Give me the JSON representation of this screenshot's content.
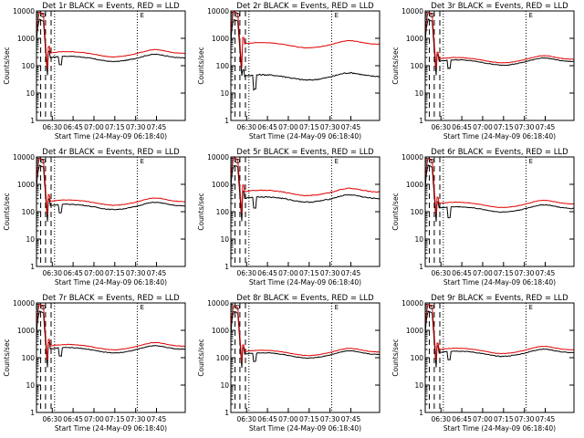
{
  "page": {
    "background": "#ffffff"
  },
  "colors": {
    "events": "#000000",
    "lld": "#e00000",
    "axis": "#000000"
  },
  "chart_data": [
    {
      "type": "line",
      "title": "Det 1r BLACK = Events, RED = LLD",
      "xlabel": "Start Time (24-May-09 06:18:40)",
      "ylabel": "Counts/sec",
      "yscale": "log",
      "ylim": [
        1,
        10000
      ],
      "x_ticks": [
        "06:30",
        "06:45",
        "07:00",
        "07:15",
        "07:30",
        "07:45"
      ],
      "y_ticks": [
        "1",
        "10",
        "100",
        "1000",
        "10000"
      ],
      "xlim_minutes": [
        0,
        107
      ],
      "series": [
        {
          "name": "Events",
          "color": "#000000",
          "baseline": 190,
          "peak": 5000,
          "dip_depth": 0.5,
          "step": 1.0,
          "noise": 0.03
        },
        {
          "name": "LLD",
          "color": "#e00000",
          "baseline": 280,
          "peak": 9000,
          "dip_depth": 0.0,
          "step": 1.0,
          "noise": 0.02
        }
      ],
      "vlines_minutes": {
        "dashed": [
          3,
          6.5,
          10.5
        ],
        "dotted": [
          13,
          72.5
        ]
      },
      "markers": [
        "D",
        "E"
      ]
    },
    {
      "type": "line",
      "title": "Det 2r BLACK = Events, RED = LLD",
      "xlabel": "Start Time (24-May-09 06:18:40)",
      "ylabel": "Counts/sec",
      "yscale": "log",
      "ylim": [
        1,
        10000
      ],
      "x_ticks": [
        "06:30",
        "06:45",
        "07:00",
        "07:15",
        "07:30",
        "07:45"
      ],
      "y_ticks": [
        "1",
        "10",
        "100",
        "1000",
        "10000"
      ],
      "xlim_minutes": [
        0,
        107
      ],
      "series": [
        {
          "name": "Events",
          "color": "#000000",
          "baseline": 40,
          "peak": 5000,
          "dip_depth": 0.7,
          "step": 1.0,
          "noise": 0.05
        },
        {
          "name": "LLD",
          "color": "#e00000",
          "baseline": 600,
          "peak": 9500,
          "dip_depth": 0.0,
          "step": 0.35,
          "noise": 0.02
        }
      ],
      "vlines_minutes": {
        "dashed": [
          3,
          6.5,
          10.5
        ],
        "dotted": [
          13,
          72.5
        ]
      },
      "markers": [
        "D",
        "E"
      ]
    },
    {
      "type": "line",
      "title": "Det 3r BLACK = Events, RED = LLD",
      "xlabel": "Start Time (24-May-09 06:18:40)",
      "ylabel": "Counts/sec",
      "yscale": "log",
      "ylim": [
        1,
        10000
      ],
      "x_ticks": [
        "06:30",
        "06:45",
        "07:00",
        "07:15",
        "07:30",
        "07:45"
      ],
      "y_ticks": [
        "1",
        "10",
        "100",
        "1000",
        "10000"
      ],
      "xlim_minutes": [
        0,
        107
      ],
      "series": [
        {
          "name": "Events",
          "color": "#000000",
          "baseline": 140,
          "peak": 5000,
          "dip_depth": 0.5,
          "step": 1.0,
          "noise": 0.03
        },
        {
          "name": "LLD",
          "color": "#e00000",
          "baseline": 170,
          "peak": 9000,
          "dip_depth": 0.0,
          "step": 1.0,
          "noise": 0.02
        }
      ],
      "vlines_minutes": {
        "dashed": [
          3,
          6.5,
          10.5
        ],
        "dotted": [
          13,
          72.5
        ]
      },
      "markers": [
        "D",
        "E"
      ]
    },
    {
      "type": "line",
      "title": "Det 4r BLACK = Events, RED = LLD",
      "xlabel": "Start Time (24-May-09 06:18:40)",
      "ylabel": "Counts/sec",
      "yscale": "log",
      "ylim": [
        1,
        10000
      ],
      "x_ticks": [
        "06:30",
        "06:45",
        "07:00",
        "07:15",
        "07:30",
        "07:45"
      ],
      "y_ticks": [
        "1",
        "10",
        "100",
        "1000",
        "10000"
      ],
      "xlim_minutes": [
        0,
        107
      ],
      "series": [
        {
          "name": "Events",
          "color": "#000000",
          "baseline": 160,
          "peak": 5000,
          "dip_depth": 0.5,
          "step": 1.0,
          "noise": 0.03
        },
        {
          "name": "LLD",
          "color": "#e00000",
          "baseline": 230,
          "peak": 9000,
          "dip_depth": 0.0,
          "step": 1.0,
          "noise": 0.02
        }
      ],
      "vlines_minutes": {
        "dashed": [
          3,
          6.5,
          10.5
        ],
        "dotted": [
          13,
          72.5
        ]
      },
      "markers": [
        "D",
        "E"
      ]
    },
    {
      "type": "line",
      "title": "Det 5r BLACK = Events, RED = LLD",
      "xlabel": "Start Time (24-May-09 06:18:40)",
      "ylabel": "Counts/sec",
      "yscale": "log",
      "ylim": [
        1,
        10000
      ],
      "x_ticks": [
        "06:30",
        "06:45",
        "07:00",
        "07:15",
        "07:30",
        "07:45"
      ],
      "y_ticks": [
        "1",
        "10",
        "100",
        "1000",
        "10000"
      ],
      "xlim_minutes": [
        0,
        107
      ],
      "series": [
        {
          "name": "Events",
          "color": "#000000",
          "baseline": 300,
          "peak": 5000,
          "dip_depth": 0.6,
          "step": 1.0,
          "noise": 0.04
        },
        {
          "name": "LLD",
          "color": "#e00000",
          "baseline": 520,
          "peak": 9500,
          "dip_depth": 0.0,
          "step": 1.0,
          "noise": 0.03
        }
      ],
      "vlines_minutes": {
        "dashed": [
          3,
          6.5,
          10.5
        ],
        "dotted": [
          13,
          72.5
        ]
      },
      "markers": [
        "D",
        "E"
      ]
    },
    {
      "type": "line",
      "title": "Det 6r BLACK = Events, RED = LLD",
      "xlabel": "Start Time (24-May-09 06:18:40)",
      "ylabel": "Counts/sec",
      "yscale": "log",
      "ylim": [
        1,
        10000
      ],
      "x_ticks": [
        "06:30",
        "06:45",
        "07:00",
        "07:15",
        "07:30",
        "07:45"
      ],
      "y_ticks": [
        "1",
        "10",
        "100",
        "1000",
        "10000"
      ],
      "xlim_minutes": [
        0,
        107
      ],
      "series": [
        {
          "name": "Events",
          "color": "#000000",
          "baseline": 130,
          "peak": 5000,
          "dip_depth": 0.6,
          "step": 1.0,
          "noise": 0.03
        },
        {
          "name": "LLD",
          "color": "#e00000",
          "baseline": 190,
          "peak": 9000,
          "dip_depth": 0.0,
          "step": 1.0,
          "noise": 0.02
        }
      ],
      "vlines_minutes": {
        "dashed": [
          3,
          6.5,
          10.5
        ],
        "dotted": [
          13,
          72.5
        ]
      },
      "markers": [
        "D",
        "E"
      ]
    },
    {
      "type": "line",
      "title": "Det 7r BLACK = Events, RED = LLD",
      "xlabel": "Start Time (24-May-09 06:18:40)",
      "ylabel": "Counts/sec",
      "yscale": "log",
      "ylim": [
        1,
        10000
      ],
      "x_ticks": [
        "06:30",
        "06:45",
        "07:00",
        "07:15",
        "07:30",
        "07:45"
      ],
      "y_ticks": [
        "1",
        "10",
        "100",
        "1000",
        "10000"
      ],
      "xlim_minutes": [
        0,
        107
      ],
      "series": [
        {
          "name": "Events",
          "color": "#000000",
          "baseline": 200,
          "peak": 5000,
          "dip_depth": 0.5,
          "step": 1.0,
          "noise": 0.03
        },
        {
          "name": "LLD",
          "color": "#e00000",
          "baseline": 260,
          "peak": 9000,
          "dip_depth": 0.0,
          "step": 1.0,
          "noise": 0.02
        }
      ],
      "vlines_minutes": {
        "dashed": [
          3,
          6.5,
          10.5
        ],
        "dotted": [
          13,
          72.5
        ]
      },
      "markers": [
        "D",
        "E"
      ]
    },
    {
      "type": "line",
      "title": "Det 8r BLACK = Events, RED = LLD",
      "xlabel": "Start Time (24-May-09 06:18:40)",
      "ylabel": "Counts/sec",
      "yscale": "log",
      "ylim": [
        1,
        10000
      ],
      "x_ticks": [
        "06:30",
        "06:45",
        "07:00",
        "07:15",
        "07:30",
        "07:45"
      ],
      "y_ticks": [
        "1",
        "10",
        "100",
        "1000",
        "10000"
      ],
      "xlim_minutes": [
        0,
        107
      ],
      "series": [
        {
          "name": "Events",
          "color": "#000000",
          "baseline": 130,
          "peak": 5000,
          "dip_depth": 0.5,
          "step": 1.0,
          "noise": 0.03
        },
        {
          "name": "LLD",
          "color": "#e00000",
          "baseline": 160,
          "peak": 8000,
          "dip_depth": 0.0,
          "step": 1.0,
          "noise": 0.02
        }
      ],
      "vlines_minutes": {
        "dashed": [
          3,
          6.5,
          10.5
        ],
        "dotted": [
          13,
          72.5
        ]
      },
      "markers": [
        "D",
        "E"
      ]
    },
    {
      "type": "line",
      "title": "Det 9r BLACK = Events, RED = LLD",
      "xlabel": "Start Time (24-May-09 06:18:40)",
      "ylabel": "Counts/sec",
      "yscale": "log",
      "ylim": [
        1,
        10000
      ],
      "x_ticks": [
        "06:30",
        "06:45",
        "07:00",
        "07:15",
        "07:30",
        "07:45"
      ],
      "y_ticks": [
        "1",
        "10",
        "100",
        "1000",
        "10000"
      ],
      "xlim_minutes": [
        0,
        107
      ],
      "series": [
        {
          "name": "Events",
          "color": "#000000",
          "baseline": 150,
          "peak": 5000,
          "dip_depth": 0.5,
          "step": 1.0,
          "noise": 0.03
        },
        {
          "name": "LLD",
          "color": "#e00000",
          "baseline": 190,
          "peak": 9000,
          "dip_depth": 0.0,
          "step": 1.0,
          "noise": 0.02
        }
      ],
      "vlines_minutes": {
        "dashed": [
          3,
          6.5,
          10.5
        ],
        "dotted": [
          13,
          72.5
        ]
      },
      "markers": [
        "D",
        "E"
      ]
    }
  ]
}
